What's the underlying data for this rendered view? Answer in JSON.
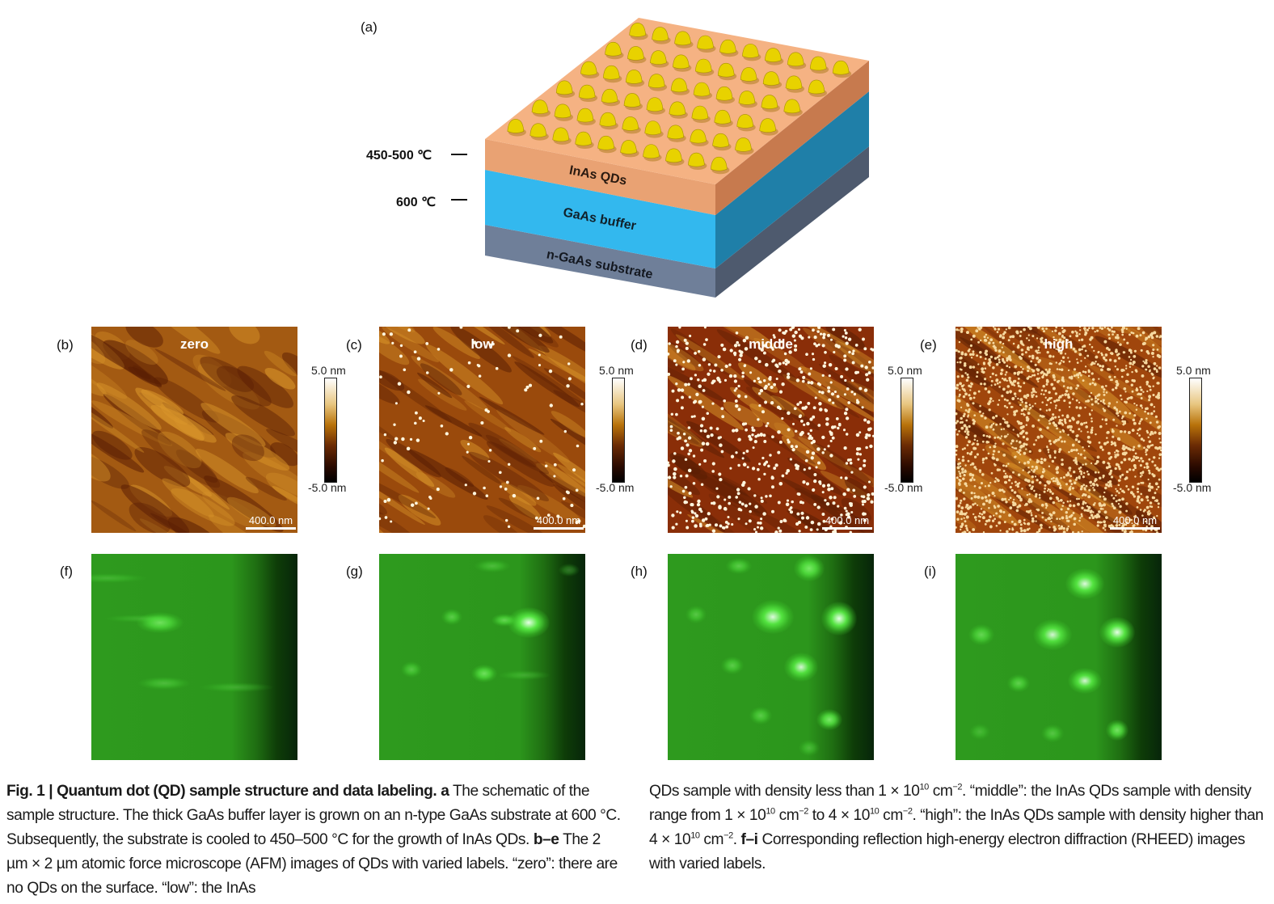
{
  "schematic": {
    "panel_label": "(a)",
    "temp_qd": "450-500 ℃",
    "temp_buffer": "600 ℃",
    "layers": [
      "InAs QDs",
      "GaAs buffer",
      "n-GaAs substrate"
    ],
    "colors": {
      "qd_layer": "#f2a878",
      "buffer": "#33b8ee",
      "substrate": "#6f7f99",
      "dots": "#e8d200"
    }
  },
  "afm": {
    "colorbar_max": "5.0 nm",
    "colorbar_min": "-5.0 nm",
    "scale_bar": "400.0 nm",
    "panels": [
      {
        "label": "(b)",
        "title": "zero"
      },
      {
        "label": "(c)",
        "title": "low"
      },
      {
        "label": "(d)",
        "title": "middle"
      },
      {
        "label": "(e)",
        "title": "high"
      }
    ]
  },
  "rheed": {
    "panels": [
      {
        "label": "(f)"
      },
      {
        "label": "(g)"
      },
      {
        "label": "(h)"
      },
      {
        "label": "(i)"
      }
    ]
  },
  "caption": {
    "left": [
      {
        "t": "Fig. 1 | Quantum dot (QD) sample structure and data labeling.",
        "s": "b"
      },
      {
        "t": " "
      },
      {
        "t": "a",
        "s": "b"
      },
      {
        "t": " The schematic of the sample structure. The thick GaAs buffer layer is grown on an n-type GaAs substrate at 600 °C. Subsequently, the substrate is cooled to 450–500 °C for the growth of InAs QDs. "
      },
      {
        "t": "b–e",
        "s": "b"
      },
      {
        "t": " The 2 µm × 2 µm atomic force microscope (AFM) images of QDs with varied labels. “zero”: there are no QDs on the surface. “low”: the InAs"
      }
    ],
    "right": [
      {
        "t": "QDs sample with density less than 1 × 10"
      },
      {
        "t": "10",
        "s": "sup"
      },
      {
        "t": " cm"
      },
      {
        "t": "−2",
        "s": "sup"
      },
      {
        "t": ". “middle”: the InAs QDs sample with density range from 1 × 10"
      },
      {
        "t": "10",
        "s": "sup"
      },
      {
        "t": " cm"
      },
      {
        "t": "−2",
        "s": "sup"
      },
      {
        "t": " to 4 × 10"
      },
      {
        "t": "10",
        "s": "sup"
      },
      {
        "t": " cm"
      },
      {
        "t": "−2",
        "s": "sup"
      },
      {
        "t": ". “high”: the InAs QDs sample with density higher than 4 × 10"
      },
      {
        "t": "10",
        "s": "sup"
      },
      {
        "t": " cm"
      },
      {
        "t": "−2",
        "s": "sup"
      },
      {
        "t": ". "
      },
      {
        "t": "f–i",
        "s": "b"
      },
      {
        "t": " Corresponding reflection high-energy electron diffraction (RHEED) images with varied labels."
      }
    ]
  }
}
